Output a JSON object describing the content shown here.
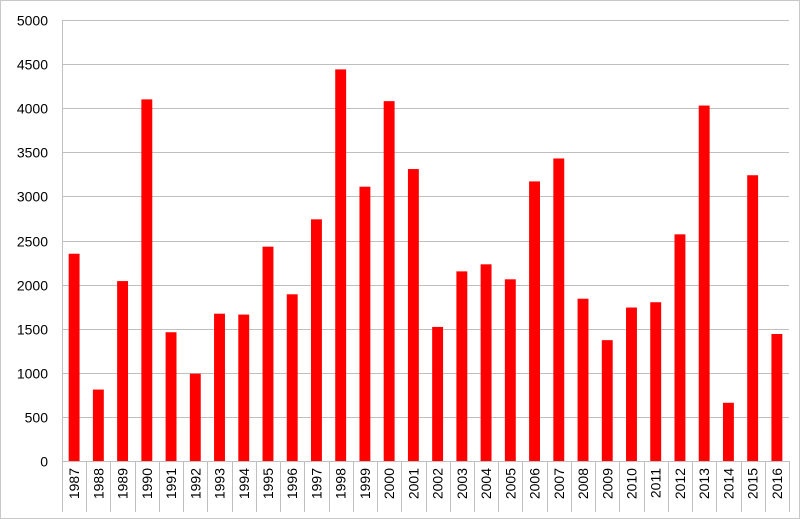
{
  "chart_data": {
    "type": "bar",
    "title": "",
    "xlabel": "",
    "ylabel": "",
    "ylim": [
      0,
      5000
    ],
    "yticks": [
      "0",
      "500",
      "1000",
      "1500",
      "2000",
      "2500",
      "3000",
      "3500",
      "4000",
      "4500",
      "5000"
    ],
    "grid": true,
    "legend": "none",
    "bar_color": "#ff0000",
    "categories": [
      "1987",
      "1988",
      "1989",
      "1990",
      "1991",
      "1992",
      "1993",
      "1994",
      "1995",
      "1996",
      "1997",
      "1998",
      "1999",
      "2000",
      "2001",
      "2002",
      "2003",
      "2004",
      "2005",
      "2006",
      "2007",
      "2008",
      "2009",
      "2010",
      "2011",
      "2012",
      "2013",
      "2014",
      "2015",
      "2016"
    ],
    "values": [
      2350,
      810,
      2040,
      4100,
      1460,
      990,
      1670,
      1660,
      2430,
      1890,
      2740,
      4440,
      3110,
      4080,
      3310,
      1520,
      2150,
      2230,
      2060,
      3170,
      3430,
      1840,
      1370,
      1740,
      1800,
      2570,
      4030,
      660,
      3240,
      1440
    ]
  }
}
